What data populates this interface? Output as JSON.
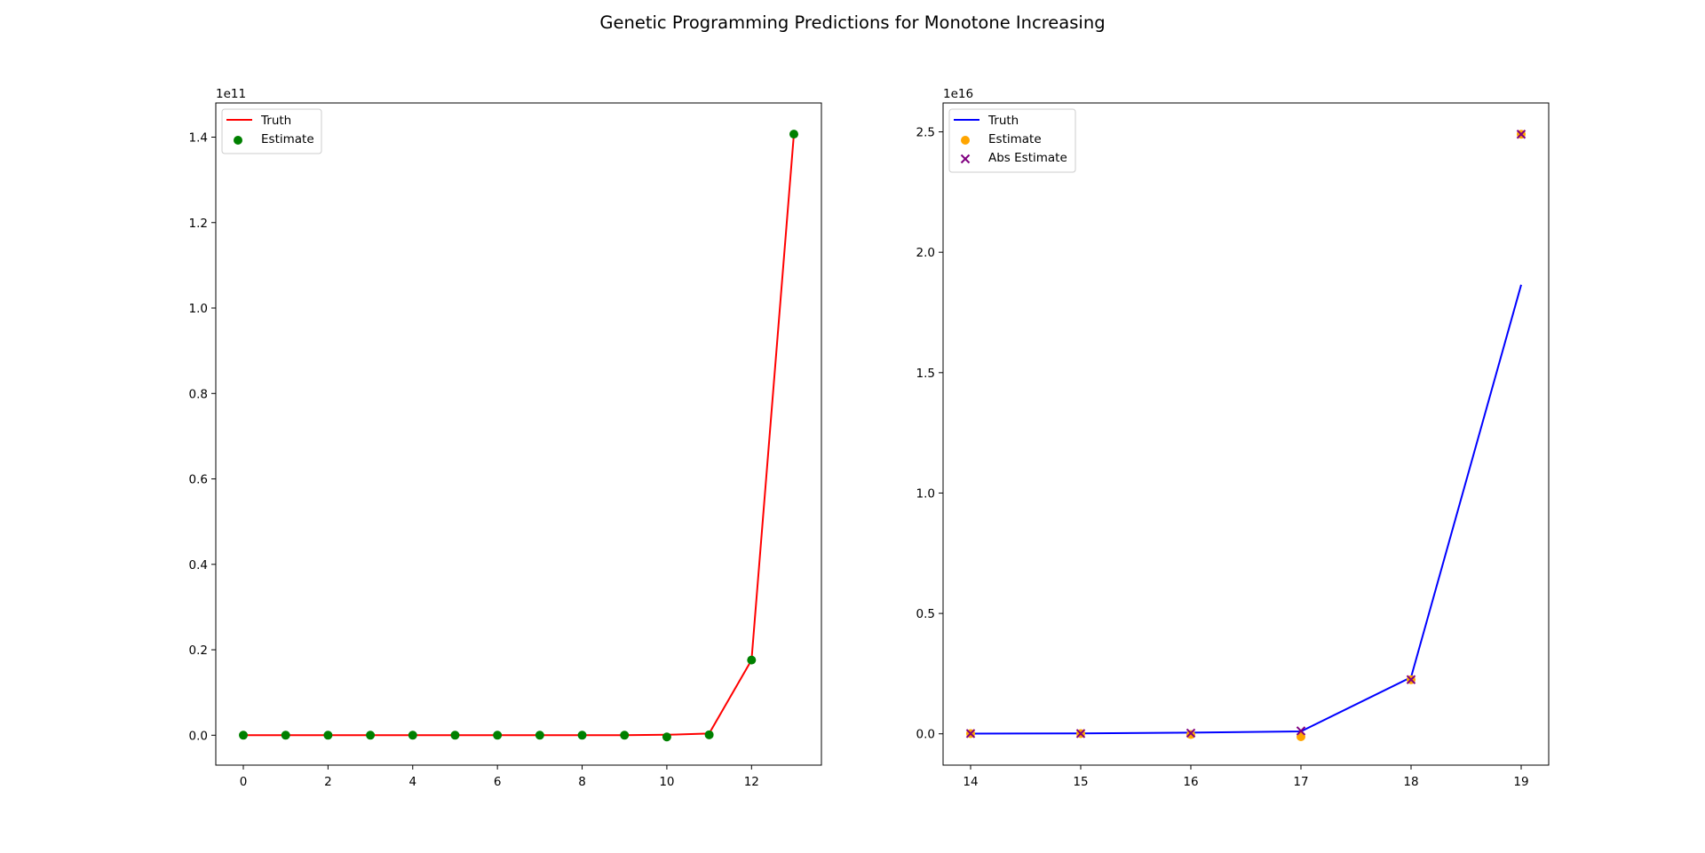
{
  "figure": {
    "title": "Genetic Programming Predictions for Monotone Increasing"
  },
  "chart_data": [
    {
      "type": "line",
      "title": "",
      "xlabel": "",
      "ylabel": "",
      "y_offset_label": "1e11",
      "xlim": [
        -0.65,
        13.65
      ],
      "ylim": [
        -0.07,
        1.48
      ],
      "x_ticks": [
        0,
        2,
        4,
        6,
        8,
        10,
        12
      ],
      "x_tick_labels": [
        "0",
        "2",
        "4",
        "6",
        "8",
        "10",
        "12"
      ],
      "y_ticks": [
        0.0,
        0.2,
        0.4,
        0.6,
        0.8,
        1.0,
        1.2,
        1.4
      ],
      "y_tick_labels": [
        "0.0",
        "0.2",
        "0.4",
        "0.6",
        "0.8",
        "1.0",
        "1.2",
        "1.4"
      ],
      "grid": false,
      "legend_position": "upper-left",
      "series": [
        {
          "name": "Truth",
          "kind": "line",
          "color": "#ff0000",
          "x": [
            0,
            1,
            2,
            3,
            4,
            5,
            6,
            7,
            8,
            9,
            10,
            11,
            12,
            13
          ],
          "y": [
            0.0,
            0.0,
            0.0,
            0.0,
            0.0,
            0.0,
            0.0,
            0.0,
            0.0,
            0.0,
            0.001,
            0.004,
            0.176,
            1.407
          ]
        },
        {
          "name": "Estimate",
          "kind": "scatter",
          "marker": "circle",
          "color": "#008000",
          "x": [
            0,
            1,
            2,
            3,
            4,
            5,
            6,
            7,
            8,
            9,
            10,
            11,
            12,
            13
          ],
          "y": [
            0.0,
            0.0,
            0.0,
            0.0,
            0.0,
            0.0,
            0.0,
            0.0,
            0.0,
            0.0,
            -0.004,
            0.001,
            0.176,
            1.407
          ]
        }
      ]
    },
    {
      "type": "line",
      "title": "",
      "xlabel": "",
      "ylabel": "",
      "y_offset_label": "1e16",
      "xlim": [
        13.75,
        19.25
      ],
      "ylim": [
        -0.13,
        2.62
      ],
      "x_ticks": [
        14,
        15,
        16,
        17,
        18,
        19
      ],
      "x_tick_labels": [
        "14",
        "15",
        "16",
        "17",
        "18",
        "19"
      ],
      "y_ticks": [
        0.0,
        0.5,
        1.0,
        1.5,
        2.0,
        2.5
      ],
      "y_tick_labels": [
        "0.0",
        "0.5",
        "1.0",
        "1.5",
        "2.0",
        "2.5"
      ],
      "grid": false,
      "legend_position": "upper-left",
      "series": [
        {
          "name": "Truth",
          "kind": "line",
          "color": "#0000ff",
          "x": [
            14,
            15,
            16,
            17,
            18,
            19
          ],
          "y": [
            0.001,
            0.002,
            0.005,
            0.01,
            0.235,
            1.865
          ]
        },
        {
          "name": "Estimate",
          "kind": "scatter",
          "marker": "circle",
          "color": "#ffa500",
          "x": [
            14,
            15,
            16,
            17,
            18,
            19
          ],
          "y": [
            0.001,
            0.001,
            -0.003,
            -0.012,
            0.225,
            2.49
          ]
        },
        {
          "name": "Abs Estimate",
          "kind": "scatter",
          "marker": "x",
          "color": "#800080",
          "x": [
            14,
            15,
            16,
            17,
            18,
            19
          ],
          "y": [
            0.001,
            0.001,
            0.003,
            0.012,
            0.225,
            2.49
          ]
        }
      ]
    }
  ]
}
